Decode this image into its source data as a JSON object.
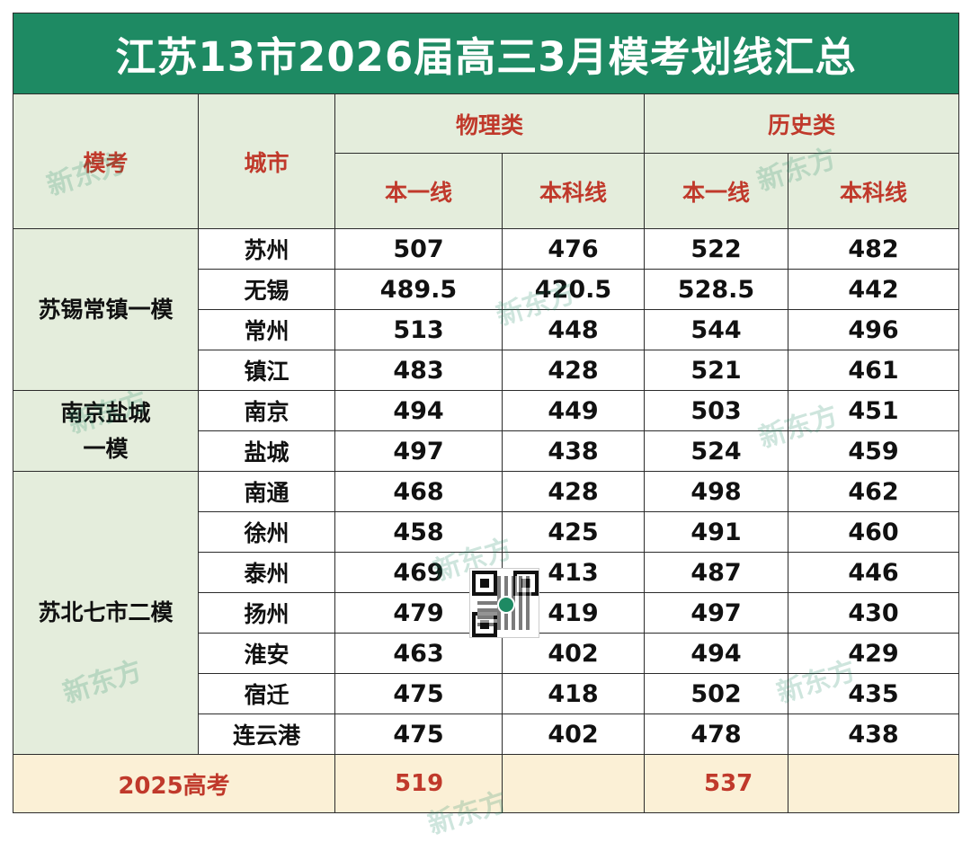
{
  "title": "江苏13市2026届高三3月模考划线汇总",
  "header": {
    "exam": "模考",
    "city": "城市",
    "physics": "物理类",
    "history": "历史类",
    "tier1": "本一线",
    "undergrad": "本科线"
  },
  "groups": [
    {
      "name": "苏锡常镇一模",
      "rows": [
        {
          "city": "苏州",
          "values": [
            "507",
            "476",
            "522",
            "482"
          ]
        },
        {
          "city": "无锡",
          "values": [
            "489.5",
            "420.5",
            "528.5",
            "442"
          ]
        },
        {
          "city": "常州",
          "values": [
            "513",
            "448",
            "544",
            "496"
          ]
        },
        {
          "city": "镇江",
          "values": [
            "483",
            "428",
            "521",
            "461"
          ]
        }
      ]
    },
    {
      "name": "南京盐城\n一模",
      "rows": [
        {
          "city": "南京",
          "values": [
            "494",
            "449",
            "503",
            "451"
          ]
        },
        {
          "city": "盐城",
          "values": [
            "497",
            "438",
            "524",
            "459"
          ]
        }
      ]
    },
    {
      "name": "苏北七市二模",
      "rows": [
        {
          "city": "南通",
          "values": [
            "468",
            "428",
            "498",
            "462"
          ]
        },
        {
          "city": "徐州",
          "values": [
            "458",
            "425",
            "491",
            "460"
          ]
        },
        {
          "city": "泰州",
          "values": [
            "469",
            "413",
            "487",
            "446"
          ]
        },
        {
          "city": "扬州",
          "values": [
            "479",
            "419",
            "497",
            "430"
          ]
        },
        {
          "city": "淮安",
          "values": [
            "463",
            "402",
            "494",
            "429"
          ]
        },
        {
          "city": "宿迁",
          "values": [
            "475",
            "418",
            "502",
            "435"
          ]
        },
        {
          "city": "连云港",
          "values": [
            "475",
            "402",
            "478",
            "438"
          ]
        }
      ]
    }
  ],
  "footer": {
    "label": "2025高考",
    "physics_tier1": "519",
    "physics_undergrad": "",
    "history_tier1": "537",
    "history_undergrad": ""
  },
  "watermark": "新东方",
  "colors": {
    "title_bg": "#1e8a63",
    "header_bg": "#e4eddc",
    "header_text": "#c0392b",
    "footer_bg": "#fbf0d6"
  }
}
